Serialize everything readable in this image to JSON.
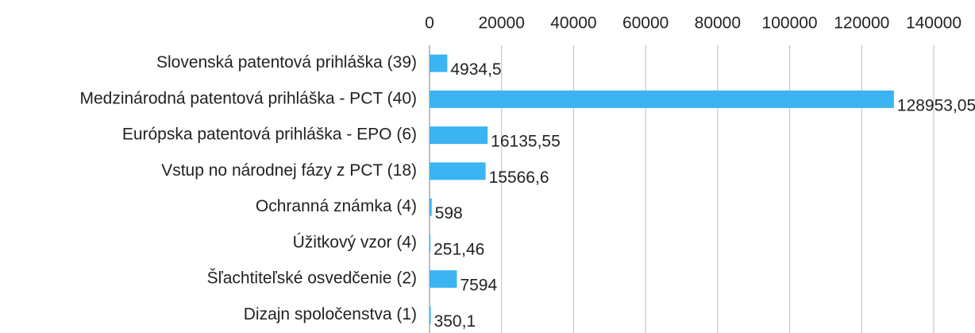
{
  "chart_data": {
    "type": "bar",
    "orientation": "horizontal",
    "categories": [
      "Slovenská patentová prihláška (39)",
      "Medzinárodná patentová prihláška - PCT (40)",
      "Európska patentová prihláška - EPO (6)",
      "Vstup no národnej fázy z PCT (18)",
      "Ochranná známka (4)",
      "Úžitkový vzor (4)",
      "Šľachtiteľské osvedčenie (2)",
      "Dizajn spoločenstva (1)"
    ],
    "values": [
      4934.5,
      128953.05,
      16135.55,
      15566.6,
      598,
      251.46,
      7594,
      350.1
    ],
    "value_labels": [
      "4934,5",
      "128953,05",
      "16135,55",
      "15566,6",
      "598",
      "251,46",
      "7594",
      "350,1"
    ],
    "color": "#3cb4f2",
    "xlim": [
      0,
      140000
    ],
    "xticks": [
      0,
      20000,
      40000,
      60000,
      80000,
      100000,
      120000,
      140000
    ],
    "grid": true
  }
}
